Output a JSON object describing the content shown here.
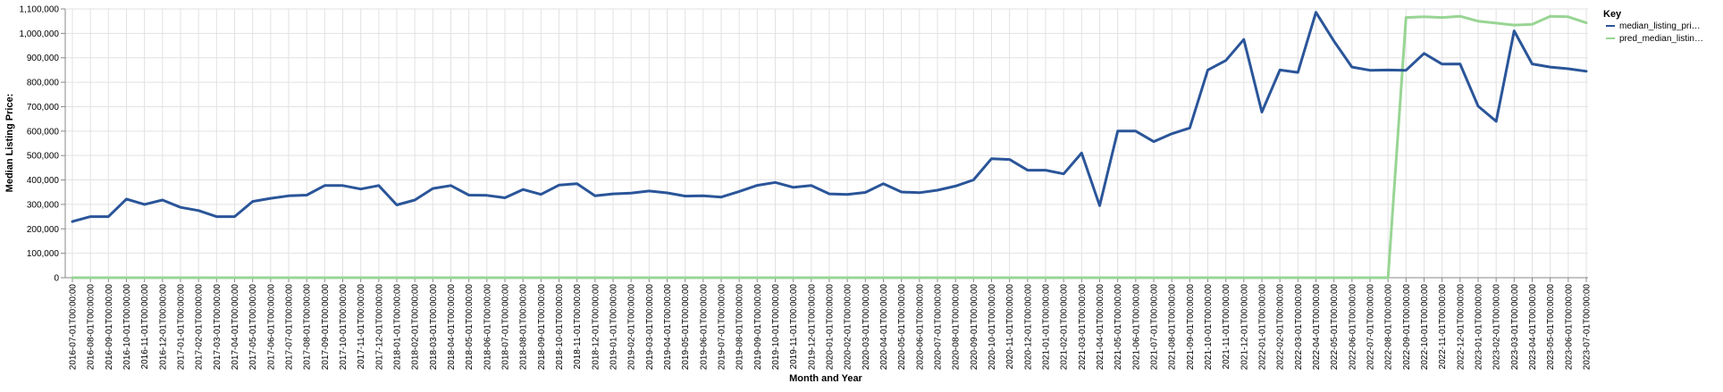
{
  "chart_data": {
    "type": "line",
    "xlabel": "Month and Year",
    "ylabel": "Median Listing Price:",
    "ylim": [
      0,
      1100000
    ],
    "y_ticks": [
      0,
      100000,
      200000,
      300000,
      400000,
      500000,
      600000,
      700000,
      800000,
      900000,
      1000000,
      1100000
    ],
    "y_tick_labels": [
      "0",
      "100,000",
      "200,000",
      "300,000",
      "400,000",
      "500,000",
      "600,000",
      "700,000",
      "800,000",
      "900,000",
      "1,000,000",
      "1,100,000"
    ],
    "grid": true,
    "legend": {
      "title": "Key",
      "placement": "top-right"
    },
    "x": [
      "2016-07-01T00:00:00",
      "2016-08-01T00:00:00",
      "2016-09-01T00:00:00",
      "2016-10-01T00:00:00",
      "2016-11-01T00:00:00",
      "2016-12-01T00:00:00",
      "2017-01-01T00:00:00",
      "2017-02-01T00:00:00",
      "2017-03-01T00:00:00",
      "2017-04-01T00:00:00",
      "2017-05-01T00:00:00",
      "2017-06-01T00:00:00",
      "2017-07-01T00:00:00",
      "2017-08-01T00:00:00",
      "2017-09-01T00:00:00",
      "2017-10-01T00:00:00",
      "2017-11-01T00:00:00",
      "2017-12-01T00:00:00",
      "2018-01-01T00:00:00",
      "2018-02-01T00:00:00",
      "2018-03-01T00:00:00",
      "2018-04-01T00:00:00",
      "2018-05-01T00:00:00",
      "2018-06-01T00:00:00",
      "2018-07-01T00:00:00",
      "2018-08-01T00:00:00",
      "2018-09-01T00:00:00",
      "2018-10-01T00:00:00",
      "2018-11-01T00:00:00",
      "2018-12-01T00:00:00",
      "2019-01-01T00:00:00",
      "2019-02-01T00:00:00",
      "2019-03-01T00:00:00",
      "2019-04-01T00:00:00",
      "2019-05-01T00:00:00",
      "2019-06-01T00:00:00",
      "2019-07-01T00:00:00",
      "2019-08-01T00:00:00",
      "2019-09-01T00:00:00",
      "2019-10-01T00:00:00",
      "2019-11-01T00:00:00",
      "2019-12-01T00:00:00",
      "2020-01-01T00:00:00",
      "2020-02-01T00:00:00",
      "2020-03-01T00:00:00",
      "2020-04-01T00:00:00",
      "2020-05-01T00:00:00",
      "2020-06-01T00:00:00",
      "2020-07-01T00:00:00",
      "2020-08-01T00:00:00",
      "2020-09-01T00:00:00",
      "2020-10-01T00:00:00",
      "2020-11-01T00:00:00",
      "2020-12-01T00:00:00",
      "2021-01-01T00:00:00",
      "2021-02-01T00:00:00",
      "2021-03-01T00:00:00",
      "2021-04-01T00:00:00",
      "2021-05-01T00:00:00",
      "2021-06-01T00:00:00",
      "2021-07-01T00:00:00",
      "2021-08-01T00:00:00",
      "2021-09-01T00:00:00",
      "2021-10-01T00:00:00",
      "2021-11-01T00:00:00",
      "2021-12-01T00:00:00",
      "2022-01-01T00:00:00",
      "2022-02-01T00:00:00",
      "2022-03-01T00:00:00",
      "2022-04-01T00:00:00",
      "2022-05-01T00:00:00",
      "2022-06-01T00:00:00",
      "2022-07-01T00:00:00",
      "2022-08-01T00:00:00",
      "2022-09-01T00:00:00",
      "2022-10-01T00:00:00",
      "2022-11-01T00:00:00",
      "2022-12-01T00:00:00",
      "2023-01-01T00:00:00",
      "2023-02-01T00:00:00",
      "2023-03-01T00:00:00",
      "2023-04-01T00:00:00",
      "2023-05-01T00:00:00",
      "2023-06-01T00:00:00",
      "2023-07-01T00:00:00"
    ],
    "series": [
      {
        "name": "median_listing_pri…",
        "color": "#2a5599",
        "values": [
          230000,
          250000,
          250000,
          322000,
          300000,
          318000,
          288000,
          275000,
          250000,
          250000,
          312000,
          325000,
          335000,
          338000,
          377000,
          377000,
          363000,
          377000,
          298000,
          318000,
          365000,
          377000,
          338000,
          337000,
          327000,
          361000,
          341000,
          379000,
          385000,
          335000,
          343000,
          346000,
          355000,
          347000,
          334000,
          335000,
          330000,
          353000,
          378000,
          390000,
          370000,
          377000,
          343000,
          341000,
          349000,
          385000,
          351000,
          348000,
          358000,
          375000,
          400000,
          487000,
          484000,
          440000,
          440000,
          425000,
          510000,
          295000,
          600000,
          600000,
          557000,
          589000,
          613000,
          850000,
          889000,
          975000,
          678000,
          850000,
          840000,
          1086000,
          968000,
          862000,
          849000,
          850000,
          849000,
          918000,
          874000,
          875000,
          702000,
          640000,
          1010000,
          875000,
          862000,
          855000,
          845000
        ]
      },
      {
        "name": "pred_median_listin…",
        "color": "#98d594",
        "values": [
          0,
          0,
          0,
          0,
          0,
          0,
          0,
          0,
          0,
          0,
          0,
          0,
          0,
          0,
          0,
          0,
          0,
          0,
          0,
          0,
          0,
          0,
          0,
          0,
          0,
          0,
          0,
          0,
          0,
          0,
          0,
          0,
          0,
          0,
          0,
          0,
          0,
          0,
          0,
          0,
          0,
          0,
          0,
          0,
          0,
          0,
          0,
          0,
          0,
          0,
          0,
          0,
          0,
          0,
          0,
          0,
          0,
          0,
          0,
          0,
          0,
          0,
          0,
          0,
          0,
          0,
          0,
          0,
          0,
          0,
          0,
          0,
          0,
          0,
          1065000,
          1068000,
          1065000,
          1070000,
          1050000,
          1042000,
          1034000,
          1037000,
          1070000,
          1068000,
          1043000
        ]
      }
    ]
  }
}
